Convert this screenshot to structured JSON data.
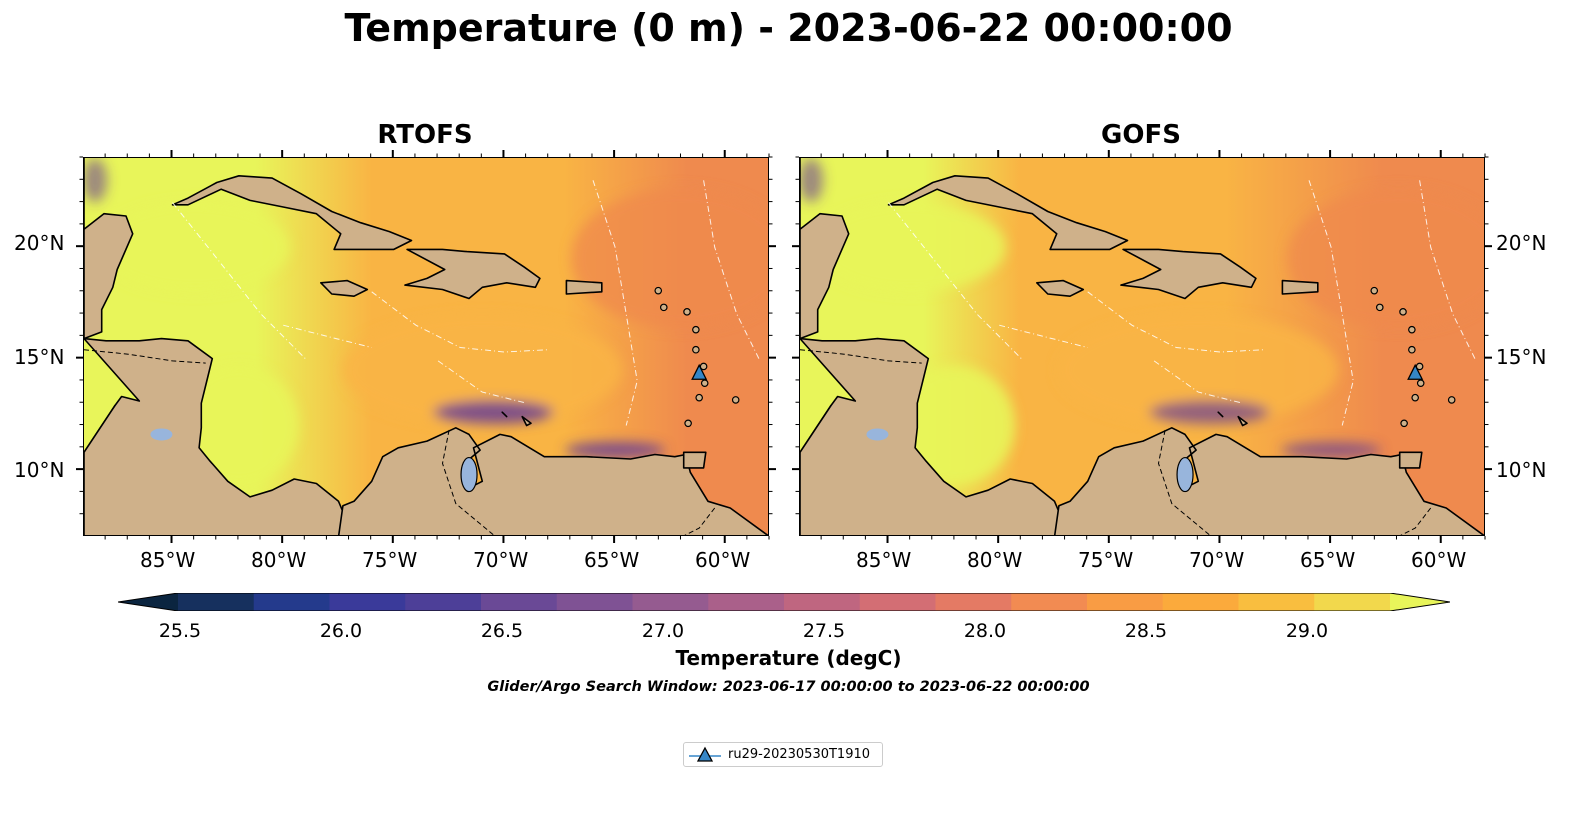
{
  "figure": {
    "title": "Temperature (0 m) - 2023-06-22 00:00:00"
  },
  "panels": [
    {
      "title": "RTOFS"
    },
    {
      "title": "GOFS"
    }
  ],
  "axes": {
    "x_ticks": [
      "85°W",
      "80°W",
      "75°W",
      "70°W",
      "65°W",
      "60°W"
    ],
    "y_ticks": [
      "20°N",
      "15°N",
      "10°N"
    ]
  },
  "colorbar": {
    "label": "Temperature (degC)",
    "ticks": [
      "25.5",
      "26.0",
      "26.5",
      "27.0",
      "27.5",
      "28.0",
      "28.5",
      "29.0"
    ],
    "colors": [
      "#0b2540",
      "#16305e",
      "#243a8c",
      "#3a3a9a",
      "#4d3f98",
      "#6a4996",
      "#7f5294",
      "#955b90",
      "#aa608a",
      "#bf6680",
      "#d36e74",
      "#e47a64",
      "#f28b52",
      "#f99c44",
      "#fbaa3c",
      "#f9be3f",
      "#f2d84c",
      "#e8f55a"
    ]
  },
  "subtitle": "Glider/Argo Search Window: 2023-06-17 00:00:00 to 2023-06-22 00:00:00",
  "legend": {
    "label": "ru29-20230530T1910",
    "marker_color": "#3586c7"
  },
  "map": {
    "land_color": "#cfb18a",
    "lake_color": "#98b5dc",
    "sea_warm": "#e8f55a",
    "sea_mid": "#f9b444",
    "sea_hot": "#ef8a4e",
    "cool_band": "#6a3f94",
    "glider_position": {
      "lon": -61.2,
      "lat": 14.3
    }
  }
}
